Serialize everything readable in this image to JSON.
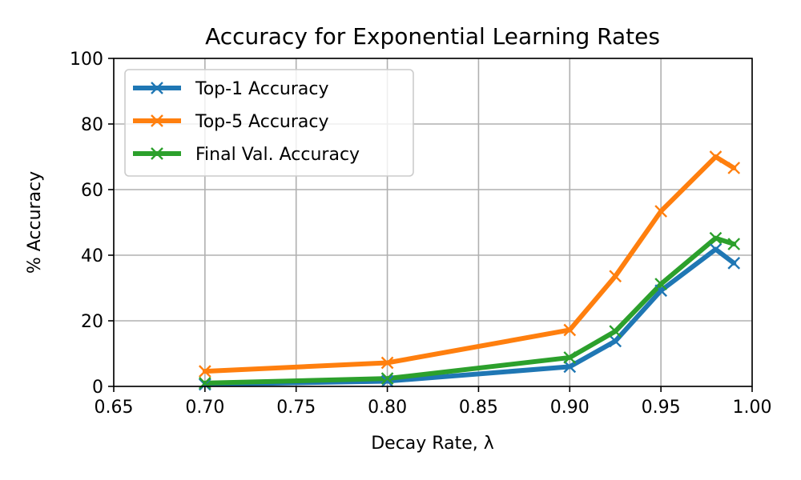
{
  "chart_data": {
    "type": "line",
    "title": "Accuracy for Exponential Learning Rates",
    "xlabel": "Decay Rate, λ",
    "ylabel": "% Accuracy",
    "xlim": [
      0.65,
      1.0
    ],
    "ylim": [
      0,
      100
    ],
    "xticks": [
      0.65,
      0.7,
      0.75,
      0.8,
      0.85,
      0.9,
      0.95,
      1.0
    ],
    "xtick_labels": [
      "0.65",
      "0.70",
      "0.75",
      "0.80",
      "0.85",
      "0.90",
      "0.95",
      "1.00"
    ],
    "yticks": [
      0,
      20,
      40,
      60,
      80,
      100
    ],
    "ytick_labels": [
      "0",
      "20",
      "40",
      "60",
      "80",
      "100"
    ],
    "grid": true,
    "legend_position": "upper-left",
    "x": [
      0.7,
      0.8,
      0.9,
      0.925,
      0.95,
      0.98,
      0.99
    ],
    "series": [
      {
        "name": "Top-1 Accuracy",
        "color": "#1f77b4",
        "marker": "x",
        "values": [
          0.6,
          1.6,
          6.0,
          13.8,
          29.2,
          41.8,
          37.6
        ]
      },
      {
        "name": "Top-5 Accuracy",
        "color": "#ff7f0e",
        "marker": "x",
        "values": [
          4.6,
          7.2,
          17.2,
          33.6,
          53.4,
          70.0,
          66.6
        ]
      },
      {
        "name": "Final Val. Accuracy",
        "color": "#2ca02c",
        "marker": "x",
        "values": [
          1.0,
          2.4,
          8.8,
          16.8,
          31.2,
          45.2,
          43.4
        ]
      }
    ]
  }
}
